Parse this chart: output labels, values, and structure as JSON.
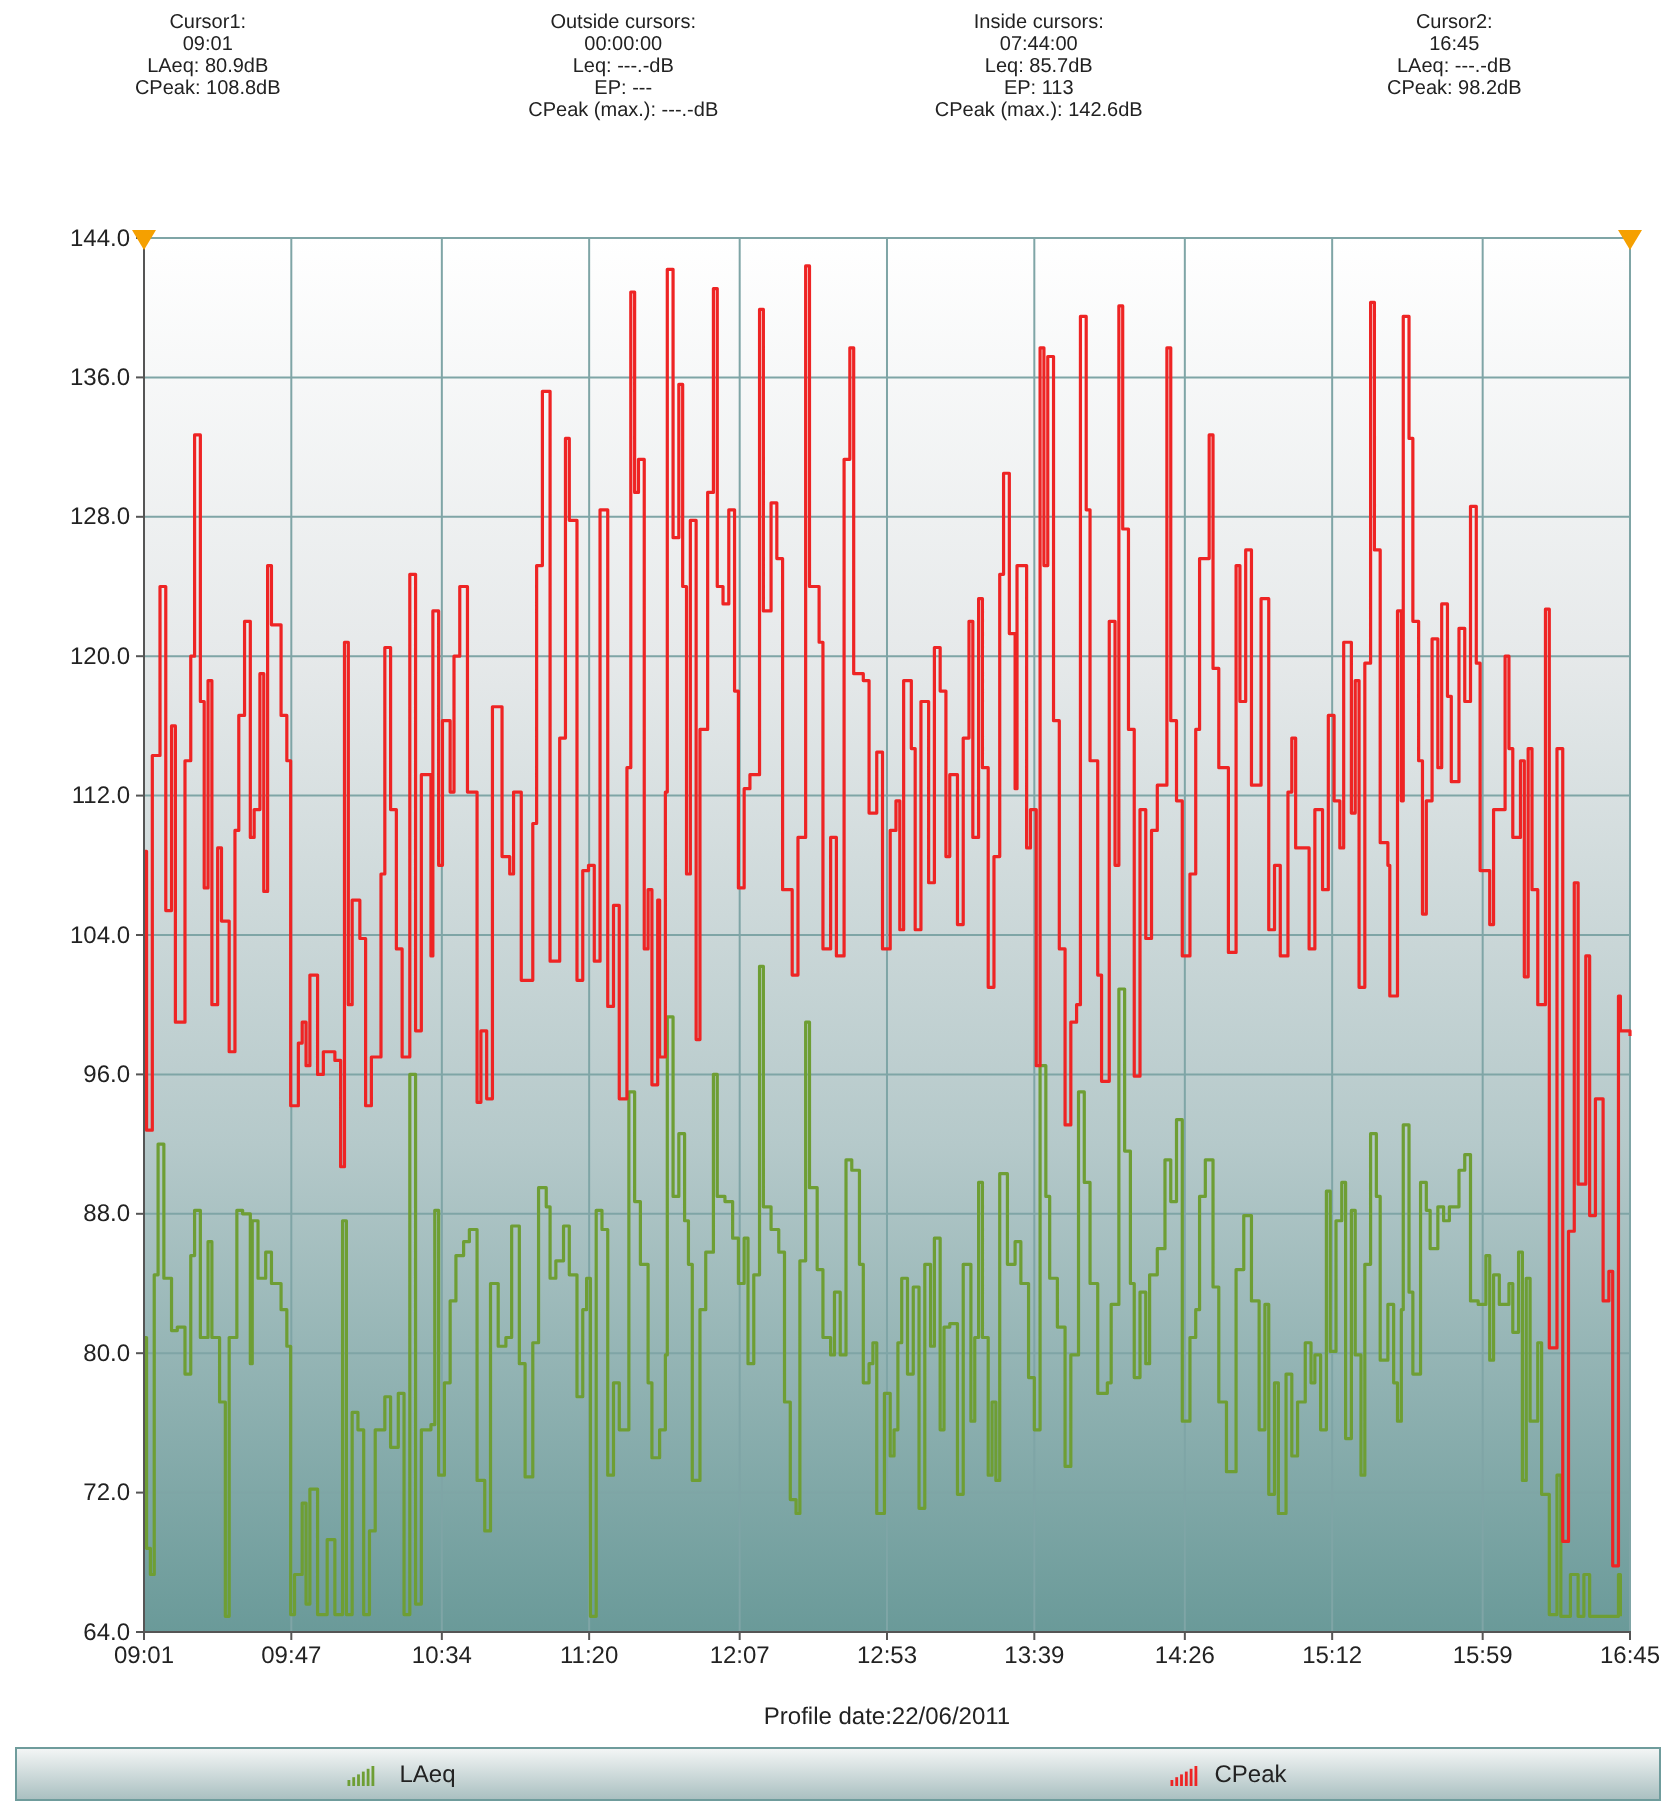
{
  "chart_data": {
    "type": "step",
    "annotations": [
      "Cursor1:\n09:01\nLAeq: 80.9dB\nCPeak: 108.8dB",
      "Outside cursors:\n00:00:00\nLeq: ---.-dB\nEP: ---\nCPeak (max.): ---.-dB",
      "Inside cursors:\n07:44:00\nLeq: 85.7dB\nEP: 113\nCPeak (max.): 142.6dB",
      "Cursor2:\n16:45\nLAeq: ---.-dB\nCPeak: 98.2dB"
    ],
    "xlabel": "Profile date:22/06/2011",
    "xlim": [
      9.0167,
      16.75
    ],
    "xticks": [
      {
        "value": 9.0167,
        "label": "09:01"
      },
      {
        "value": 9.7833,
        "label": "09:47"
      },
      {
        "value": 10.5667,
        "label": "10:34"
      },
      {
        "value": 11.3333,
        "label": "11:20"
      },
      {
        "value": 12.1167,
        "label": "12:07"
      },
      {
        "value": 12.8833,
        "label": "12:53"
      },
      {
        "value": 13.65,
        "label": "13:39"
      },
      {
        "value": 14.4333,
        "label": "14:26"
      },
      {
        "value": 15.2,
        "label": "15:12"
      },
      {
        "value": 15.9833,
        "label": "15:59"
      },
      {
        "value": 16.75,
        "label": "16:45"
      }
    ],
    "ylim": [
      64,
      144
    ],
    "yticks": [
      {
        "value": 64,
        "label": "64.0"
      },
      {
        "value": 72,
        "label": "72.0"
      },
      {
        "value": 80,
        "label": "80.0"
      },
      {
        "value": 88,
        "label": "88.0"
      },
      {
        "value": 96,
        "label": "96.0"
      },
      {
        "value": 104,
        "label": "104.0"
      },
      {
        "value": 112,
        "label": "112.0"
      },
      {
        "value": 120,
        "label": "120.0"
      },
      {
        "value": 128,
        "label": "128.0"
      },
      {
        "value": 136,
        "label": "136.0"
      },
      {
        "value": 144,
        "label": "144.0"
      }
    ],
    "grid": true,
    "legend": "bottom",
    "series": [
      {
        "name": "LAeq",
        "color": "#6e9e34",
        "x": [
          9.02,
          9.03,
          9.05,
          9.07,
          9.09,
          9.12,
          9.16,
          9.19,
          9.23,
          9.26,
          9.28,
          9.31,
          9.35,
          9.37,
          9.41,
          9.44,
          9.46,
          9.5,
          9.53,
          9.57,
          9.58,
          9.61,
          9.65,
          9.68,
          9.73,
          9.76,
          9.78,
          9.8,
          9.84,
          9.86,
          9.88,
          9.92,
          9.97,
          10.01,
          10.05,
          10.07,
          10.1,
          10.13,
          10.16,
          10.19,
          10.22,
          10.27,
          10.3,
          10.34,
          10.37,
          10.4,
          10.43,
          10.46,
          10.51,
          10.53,
          10.55,
          10.58,
          10.61,
          10.64,
          10.68,
          10.71,
          10.75,
          10.79,
          10.82,
          10.86,
          10.9,
          10.93,
          10.97,
          11.0,
          11.04,
          11.07,
          11.11,
          11.13,
          11.16,
          11.2,
          11.23,
          11.27,
          11.3,
          11.32,
          11.34,
          11.37,
          11.4,
          11.43,
          11.46,
          11.49,
          11.54,
          11.57,
          11.6,
          11.64,
          11.66,
          11.7,
          11.73,
          11.74,
          11.77,
          11.8,
          11.83,
          11.85,
          11.87,
          11.91,
          11.94,
          11.98,
          12.0,
          12.04,
          12.08,
          12.11,
          12.14,
          12.16,
          12.19,
          12.22,
          12.24,
          12.28,
          12.32,
          12.35,
          12.38,
          12.41,
          12.43,
          12.46,
          12.48,
          12.52,
          12.55,
          12.59,
          12.61,
          12.64,
          12.67,
          12.7,
          12.74,
          12.76,
          12.79,
          12.81,
          12.83,
          12.87,
          12.9,
          12.92,
          12.94,
          12.96,
          12.99,
          13.02,
          13.05,
          13.08,
          13.11,
          13.13,
          13.16,
          13.18,
          13.21,
          13.25,
          13.28,
          13.32,
          13.34,
          13.36,
          13.38,
          13.41,
          13.43,
          13.45,
          13.47,
          13.51,
          13.55,
          13.58,
          13.62,
          13.65,
          13.68,
          13.71,
          13.73,
          13.77,
          13.81,
          13.84,
          13.88,
          13.91,
          13.94,
          13.98,
          14.03,
          14.05,
          14.09,
          14.12,
          14.15,
          14.17,
          14.2,
          14.23,
          14.25,
          14.29,
          14.33,
          14.36,
          14.39,
          14.42,
          14.46,
          14.49,
          14.51,
          14.54,
          14.58,
          14.61,
          14.65,
          14.7,
          14.74,
          14.78,
          14.82,
          14.85,
          14.87,
          14.9,
          14.92,
          14.96,
          14.99,
          15.02,
          15.06,
          15.09,
          15.11,
          15.14,
          15.17,
          15.19,
          15.22,
          15.25,
          15.27,
          15.3,
          15.32,
          15.35,
          15.37,
          15.4,
          15.43,
          15.45,
          15.49,
          15.52,
          15.54,
          15.56,
          15.57,
          15.6,
          15.62,
          15.66,
          15.69,
          15.71,
          15.75,
          15.78,
          15.81,
          15.86,
          15.89,
          15.92,
          15.96,
          16.0,
          16.02,
          16.04,
          16.07,
          16.12,
          16.14,
          16.17,
          16.19,
          16.21,
          16.23,
          16.27,
          16.29,
          16.33,
          16.37,
          16.39,
          16.44,
          16.48,
          16.51,
          16.54,
          16.69,
          16.7
        ],
        "values": [
          80.9,
          68.8,
          67.3,
          84.5,
          92,
          84.3,
          81.3,
          81.5,
          78.8,
          85.6,
          88.2,
          80.9,
          86.4,
          80.9,
          77.2,
          64.9,
          80.9,
          88.2,
          88,
          79.4,
          87.6,
          84.3,
          85.8,
          84,
          82.5,
          80.4,
          65,
          67.3,
          71.4,
          65.6,
          72.2,
          65,
          69.3,
          65,
          87.6,
          65,
          76.6,
          75.6,
          65,
          69.8,
          75.6,
          77.5,
          74.6,
          77.7,
          65,
          96,
          65.6,
          75.6,
          75.9,
          88.2,
          73,
          78.3,
          83,
          85.6,
          86.4,
          87.1,
          72.7,
          69.8,
          84,
          80.4,
          80.9,
          87.3,
          79.4,
          72.9,
          80.6,
          89.5,
          88.4,
          84.3,
          85.3,
          87.3,
          84.5,
          77.5,
          82.5,
          84.3,
          64.9,
          88.2,
          87.1,
          73,
          78.3,
          75.6,
          95,
          88.7,
          85.1,
          78.3,
          74,
          75.6,
          79.9,
          99.3,
          89,
          92.6,
          87.6,
          85.1,
          72.7,
          82.5,
          85.8,
          96,
          89,
          88.7,
          86.6,
          84,
          86.6,
          79.4,
          84.5,
          102.2,
          88.4,
          87.1,
          85.8,
          77.2,
          71.6,
          70.8,
          85.3,
          99,
          89.5,
          84.8,
          80.9,
          79.9,
          83.5,
          79.9,
          91.1,
          90.5,
          85.1,
          78.3,
          79.4,
          80.6,
          70.8,
          77.7,
          74.1,
          75.6,
          80.6,
          84.3,
          78.8,
          83.8,
          71.1,
          85.1,
          80.4,
          86.6,
          75.6,
          81.5,
          81.7,
          71.9,
          85.1,
          76.1,
          80.9,
          89.8,
          80.9,
          73,
          77.2,
          72.7,
          90.3,
          85.1,
          86.4,
          84,
          78.6,
          75.6,
          96.5,
          89,
          84.3,
          81.5,
          73.5,
          79.9,
          95,
          89.8,
          84,
          77.7,
          78.3,
          82.8,
          100.9,
          91.6,
          84,
          78.6,
          83.5,
          79.4,
          84.5,
          86,
          91.1,
          88.7,
          93.4,
          76.1,
          80.9,
          82.5,
          89,
          91.1,
          83.8,
          77.2,
          73.2,
          84.8,
          87.9,
          83,
          75.6,
          82.8,
          71.9,
          78.3,
          70.8,
          78.8,
          74.1,
          77.2,
          80.6,
          78.3,
          79.9,
          75.6,
          89.3,
          80.1,
          87.6,
          89.8,
          75.1,
          88.2,
          79.9,
          73,
          85.1,
          92.6,
          89,
          79.6,
          82.8,
          78.3,
          76.1,
          82.5,
          93.1,
          83.5,
          78.8,
          89.8,
          88.2,
          86,
          88.4,
          87.6,
          88.4,
          90.5,
          91.4,
          83,
          82.8,
          85.6,
          79.6,
          84.5,
          82.8,
          84,
          81.2,
          85.8,
          72.7,
          84.3,
          76.1,
          80.6,
          71.9,
          65,
          73,
          64.9,
          67.3,
          64.9,
          67.3,
          64.9,
          67.3,
          64.9
        ]
      },
      {
        "name": "CPeak",
        "color": "#ee2424",
        "x": [
          9.02,
          9.03,
          9.06,
          9.1,
          9.13,
          9.16,
          9.18,
          9.23,
          9.26,
          9.28,
          9.31,
          9.33,
          9.35,
          9.37,
          9.4,
          9.42,
          9.46,
          9.49,
          9.51,
          9.54,
          9.57,
          9.59,
          9.62,
          9.64,
          9.66,
          9.68,
          9.73,
          9.76,
          9.78,
          9.82,
          9.84,
          9.86,
          9.88,
          9.92,
          9.95,
          10.01,
          10.04,
          10.06,
          10.08,
          10.1,
          10.14,
          10.17,
          10.2,
          10.25,
          10.27,
          10.3,
          10.33,
          10.36,
          10.4,
          10.43,
          10.46,
          10.51,
          10.52,
          10.55,
          10.57,
          10.61,
          10.63,
          10.66,
          10.7,
          10.75,
          10.77,
          10.8,
          10.83,
          10.88,
          10.92,
          10.94,
          10.98,
          11.04,
          11.06,
          11.09,
          11.13,
          11.18,
          11.21,
          11.23,
          11.27,
          11.3,
          11.33,
          11.36,
          11.39,
          11.43,
          11.46,
          11.49,
          11.53,
          11.55,
          11.57,
          11.59,
          11.62,
          11.64,
          11.66,
          11.69,
          11.7,
          11.73,
          11.74,
          11.77,
          11.8,
          11.82,
          11.84,
          11.86,
          11.89,
          11.91,
          11.95,
          11.98,
          12.0,
          12.03,
          12.06,
          12.09,
          12.11,
          12.14,
          12.17,
          12.22,
          12.24,
          12.28,
          12.31,
          12.34,
          12.39,
          12.42,
          12.46,
          12.48,
          12.53,
          12.55,
          12.59,
          12.62,
          12.66,
          12.69,
          12.71,
          12.76,
          12.79,
          12.83,
          12.86,
          12.9,
          12.93,
          12.95,
          12.97,
          13.01,
          13.03,
          13.06,
          13.1,
          13.13,
          13.16,
          13.19,
          13.21,
          13.25,
          13.28,
          13.31,
          13.33,
          13.36,
          13.38,
          13.41,
          13.44,
          13.47,
          13.49,
          13.52,
          13.55,
          13.56,
          13.61,
          13.63,
          13.66,
          13.68,
          13.7,
          13.72,
          13.75,
          13.78,
          13.81,
          13.84,
          13.87,
          13.89,
          13.92,
          13.94,
          13.98,
          14.0,
          14.04,
          14.07,
          14.09,
          14.11,
          14.14,
          14.17,
          14.2,
          14.23,
          14.26,
          14.29,
          14.34,
          14.36,
          14.39,
          14.42,
          14.46,
          14.49,
          14.51,
          14.56,
          14.58,
          14.61,
          14.66,
          14.7,
          14.72,
          14.75,
          14.78,
          14.83,
          14.87,
          14.9,
          14.93,
          14.97,
          14.99,
          15.01,
          15.08,
          15.11,
          15.15,
          15.18,
          15.21,
          15.24,
          15.26,
          15.3,
          15.32,
          15.34,
          15.37,
          15.4,
          15.42,
          15.45,
          15.49,
          15.5,
          15.54,
          15.56,
          15.57,
          15.6,
          15.62,
          15.65,
          15.67,
          15.69,
          15.72,
          15.75,
          15.77,
          15.8,
          15.82,
          15.86,
          15.89,
          15.92,
          15.95,
          15.97,
          16.02,
          16.04,
          16.1,
          16.12,
          16.14,
          16.18,
          16.2,
          16.22,
          16.24,
          16.27,
          16.31,
          16.33,
          16.37,
          16.4,
          16.43,
          16.46,
          16.48,
          16.52,
          16.54,
          16.57,
          16.61,
          16.64,
          16.66,
          16.69,
          16.7,
          16.75
        ],
        "values": [
          108.8,
          92.8,
          114.3,
          124,
          105.4,
          116,
          99,
          114,
          120,
          132.7,
          117.4,
          106.7,
          118.6,
          100,
          109,
          104.8,
          97.3,
          110,
          116.6,
          122,
          109.6,
          111.2,
          119,
          106.5,
          125.2,
          121.8,
          116.6,
          114,
          94.2,
          97.8,
          99,
          96.5,
          101.7,
          96,
          97.3,
          96.8,
          90.7,
          120.8,
          100,
          106,
          103.8,
          94.2,
          97,
          107.5,
          120.5,
          111.2,
          103.2,
          97,
          124.7,
          98.5,
          113.2,
          102.8,
          122.6,
          108,
          116.3,
          112.2,
          120,
          124,
          112.2,
          94.4,
          98.5,
          94.6,
          117.1,
          108.5,
          107.5,
          112.2,
          101.4,
          110.4,
          125.2,
          135.2,
          102.5,
          115.3,
          132.5,
          127.8,
          101.4,
          107.7,
          108,
          102.5,
          128.4,
          99.9,
          105.7,
          94.6,
          113.6,
          140.9,
          129.4,
          131.3,
          103.2,
          106.6,
          95.4,
          106,
          97,
          112.2,
          142.2,
          126.8,
          135.6,
          124,
          107.5,
          127.8,
          98,
          115.8,
          129.4,
          141.1,
          124,
          123,
          128.4,
          118,
          106.7,
          112.4,
          113.2,
          139.9,
          122.6,
          128.8,
          125.6,
          106.6,
          101.7,
          109.6,
          142.4,
          124,
          120.8,
          103.2,
          109.6,
          102.8,
          131.3,
          137.7,
          119,
          118.6,
          111,
          114.5,
          103.2,
          110,
          111.7,
          104.3,
          118.6,
          114.7,
          104.3,
          117.4,
          107,
          120.5,
          118,
          108.5,
          113.2,
          104.6,
          115.3,
          122,
          109.6,
          123.3,
          113.6,
          101,
          108.5,
          124.7,
          130.5,
          121.3,
          112.4,
          125.2,
          109,
          111.2,
          96.5,
          137.7,
          125.2,
          137.2,
          116.3,
          103.2,
          93.1,
          99,
          100,
          139.5,
          128.4,
          114,
          101.7,
          95.6,
          122,
          108,
          140.1,
          127.3,
          115.8,
          95.9,
          111.2,
          103.8,
          110,
          112.6,
          137.7,
          116.3,
          111.7,
          102.8,
          107.5,
          115.8,
          125.6,
          132.7,
          119.3,
          113.6,
          103,
          125.2,
          117.4,
          126.1,
          112.6,
          123.3,
          104.3,
          108,
          102.8,
          112.2,
          115.3,
          109,
          103.2,
          111.2,
          106.6,
          116.6,
          111.7,
          109,
          120.8,
          111,
          118.6,
          101,
          119.6,
          140.3,
          126.1,
          109.3,
          108,
          100.5,
          122.6,
          111.7,
          139.5,
          132.5,
          122,
          114,
          105.2,
          111.7,
          121,
          113.6,
          123,
          117.7,
          112.8,
          121.6,
          117.4,
          128.6,
          119.6,
          107.7,
          104.6,
          111.2,
          120,
          114.7,
          109.6,
          114,
          101.6,
          114.7,
          106.6,
          100,
          122.7,
          80.3,
          114.7,
          69.2,
          87,
          107,
          89.7,
          102.8,
          87.9,
          94.6,
          83,
          84.7,
          67.8,
          100.5,
          98.5,
          98.2
        ]
      }
    ]
  }
}
